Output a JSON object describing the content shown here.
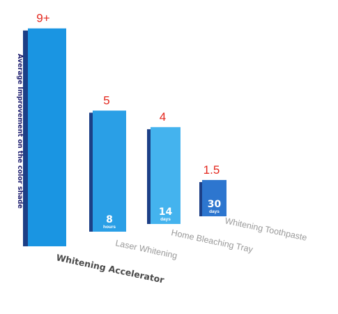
{
  "chart_data": {
    "type": "bar",
    "ylabel": "Average Improvement on the color shade",
    "categories": [
      "Whitening Accelerator",
      "Laser Whitening",
      "Home Bleaching Tray",
      "Whitening Toothpaste"
    ],
    "values": [
      9,
      5,
      4,
      1.5
    ],
    "value_labels": [
      "9+",
      "5",
      "4",
      "1.5"
    ],
    "durations": [
      {
        "number": "",
        "unit": ""
      },
      {
        "number": "8",
        "unit": "hours"
      },
      {
        "number": "14",
        "unit": "days"
      },
      {
        "number": "30",
        "unit": "days"
      }
    ],
    "colors": {
      "bars": [
        "#1a95e2",
        "#2a9fe6",
        "#44b3ee",
        "#2d76cf"
      ],
      "bar_shadow": "#1c3f86",
      "value_label": "#e3261c"
    },
    "legend": "none",
    "grid": false
  }
}
